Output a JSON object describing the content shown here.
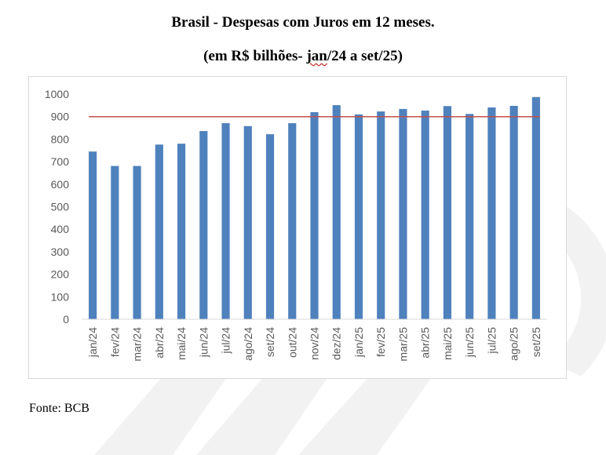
{
  "header": {
    "title": "Brasil - Despesas com Juros em 12 meses.",
    "subtitle_pre": "(em R$ bilhões- ",
    "subtitle_mid": "jan",
    "subtitle_post": "/24 a set/25)"
  },
  "footer": {
    "source": "Fonte: BCB"
  },
  "colors": {
    "bar": "#4f81bd",
    "reference_line": "#c0504d",
    "grid": "#d9d9d9",
    "axis_text": "#595959"
  },
  "chart_data": {
    "type": "bar",
    "title": "Brasil - Despesas com Juros em 12 meses.",
    "subtitle": "(em R$ bilhões- jan/24 a set/25)",
    "categories": [
      "jan/24",
      "fev/24",
      "mar/24",
      "abr/24",
      "mai/24",
      "jun/24",
      "jul/24",
      "ago/24",
      "set/24",
      "out/24",
      "nov/24",
      "dez/24",
      "jan/25",
      "fev/25",
      "mar/25",
      "abr/25",
      "mai/25",
      "jun/25",
      "jul/25",
      "ago/25",
      "set/25"
    ],
    "values": [
      745,
      681,
      681,
      776,
      780,
      836,
      871,
      858,
      822,
      871,
      920,
      951,
      910,
      923,
      934,
      927,
      947,
      912,
      941,
      948,
      987
    ],
    "reference_line": 900,
    "ylim": [
      0,
      1000
    ],
    "yticks": [
      0,
      100,
      200,
      300,
      400,
      500,
      600,
      700,
      800,
      900,
      1000
    ],
    "xlabel": "",
    "ylabel": "",
    "grid": false,
    "legend": "none"
  }
}
